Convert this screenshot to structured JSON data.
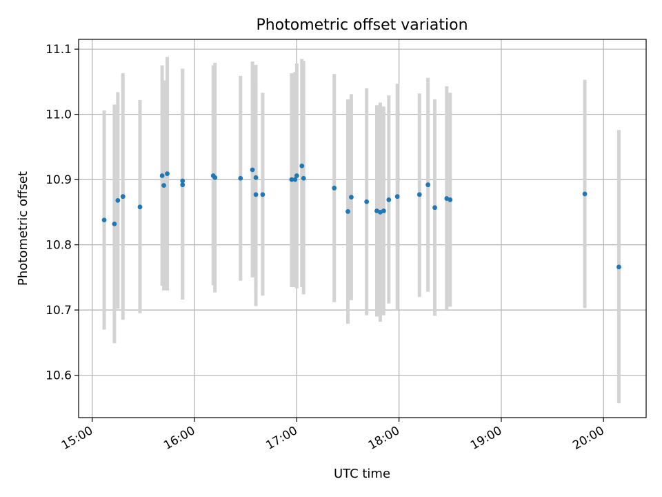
{
  "chart_data": {
    "type": "scatter",
    "title": "Photometric offset variation",
    "xlabel": "UTC time",
    "ylabel": "Photometric offset",
    "x_unit": "hours",
    "xlim": [
      "14:52",
      "20:25"
    ],
    "ylim": [
      10.535,
      11.115
    ],
    "xticks": [
      "15:00",
      "16:00",
      "17:00",
      "18:00",
      "19:00",
      "20:00"
    ],
    "yticks": [
      10.6,
      10.7,
      10.8,
      10.9,
      11.0,
      11.1
    ],
    "ytick_labels": [
      "10.6",
      "10.7",
      "10.8",
      "10.9",
      "11.0",
      "11.1"
    ],
    "grid": true,
    "marker_color": "#1f77b4",
    "errorbar_color": "#d3d3d3",
    "points": [
      {
        "x": "15:07",
        "y": 10.838,
        "ylo": 10.67,
        "yhi": 11.006
      },
      {
        "x": "15:13",
        "y": 10.832,
        "ylo": 10.649,
        "yhi": 11.015
      },
      {
        "x": "15:15",
        "y": 10.868,
        "ylo": 10.702,
        "yhi": 11.034
      },
      {
        "x": "15:18",
        "y": 10.874,
        "ylo": 10.685,
        "yhi": 11.063
      },
      {
        "x": "15:28",
        "y": 10.858,
        "ylo": 10.695,
        "yhi": 11.022
      },
      {
        "x": "15:41",
        "y": 10.906,
        "ylo": 10.737,
        "yhi": 11.075
      },
      {
        "x": "15:42",
        "y": 10.891,
        "ylo": 10.73,
        "yhi": 11.052
      },
      {
        "x": "15:44",
        "y": 10.909,
        "ylo": 10.73,
        "yhi": 11.088
      },
      {
        "x": "15:53",
        "y": 10.898,
        "ylo": 10.716,
        "yhi": 11.07
      },
      {
        "x": "15:53",
        "y": 10.892,
        "ylo": 10.716,
        "yhi": 11.07
      },
      {
        "x": "16:11",
        "y": 10.906,
        "ylo": 10.738,
        "yhi": 11.075
      },
      {
        "x": "16:12",
        "y": 10.903,
        "ylo": 10.727,
        "yhi": 11.079
      },
      {
        "x": "16:27",
        "y": 10.902,
        "ylo": 10.745,
        "yhi": 11.059
      },
      {
        "x": "16:34",
        "y": 10.915,
        "ylo": 10.75,
        "yhi": 11.081
      },
      {
        "x": "16:36",
        "y": 10.903,
        "ylo": 10.706,
        "yhi": 11.076
      },
      {
        "x": "16:36",
        "y": 10.877,
        "ylo": 10.73,
        "yhi": 11.05
      },
      {
        "x": "16:40",
        "y": 10.877,
        "ylo": 10.722,
        "yhi": 11.033
      },
      {
        "x": "16:57",
        "y": 10.9,
        "ylo": 10.735,
        "yhi": 11.063
      },
      {
        "x": "16:59",
        "y": 10.9,
        "ylo": 10.735,
        "yhi": 11.065
      },
      {
        "x": "17:00",
        "y": 10.906,
        "ylo": 10.733,
        "yhi": 11.078
      },
      {
        "x": "17:03",
        "y": 10.921,
        "ylo": 10.735,
        "yhi": 11.085
      },
      {
        "x": "17:04",
        "y": 10.902,
        "ylo": 10.724,
        "yhi": 11.082
      },
      {
        "x": "17:22",
        "y": 10.887,
        "ylo": 10.712,
        "yhi": 11.062
      },
      {
        "x": "17:30",
        "y": 10.851,
        "ylo": 10.679,
        "yhi": 11.023
      },
      {
        "x": "17:32",
        "y": 10.873,
        "ylo": 10.715,
        "yhi": 11.031
      },
      {
        "x": "17:41",
        "y": 10.866,
        "ylo": 10.692,
        "yhi": 11.04
      },
      {
        "x": "17:47",
        "y": 10.852,
        "ylo": 10.69,
        "yhi": 11.014
      },
      {
        "x": "17:49",
        "y": 10.85,
        "ylo": 10.682,
        "yhi": 11.018
      },
      {
        "x": "17:51",
        "y": 10.852,
        "ylo": 10.692,
        "yhi": 11.012
      },
      {
        "x": "17:54",
        "y": 10.869,
        "ylo": 10.71,
        "yhi": 11.029
      },
      {
        "x": "17:59",
        "y": 10.874,
        "ylo": 10.7,
        "yhi": 11.047
      },
      {
        "x": "18:12",
        "y": 10.877,
        "ylo": 10.72,
        "yhi": 11.032
      },
      {
        "x": "18:17",
        "y": 10.892,
        "ylo": 10.728,
        "yhi": 11.056
      },
      {
        "x": "18:21",
        "y": 10.857,
        "ylo": 10.691,
        "yhi": 11.023
      },
      {
        "x": "18:28",
        "y": 10.871,
        "ylo": 10.701,
        "yhi": 11.043
      },
      {
        "x": "18:30",
        "y": 10.869,
        "ylo": 10.705,
        "yhi": 11.033
      },
      {
        "x": "19:49",
        "y": 10.878,
        "ylo": 10.703,
        "yhi": 11.053
      },
      {
        "x": "20:09",
        "y": 10.766,
        "ylo": 10.557,
        "yhi": 10.976
      }
    ]
  }
}
